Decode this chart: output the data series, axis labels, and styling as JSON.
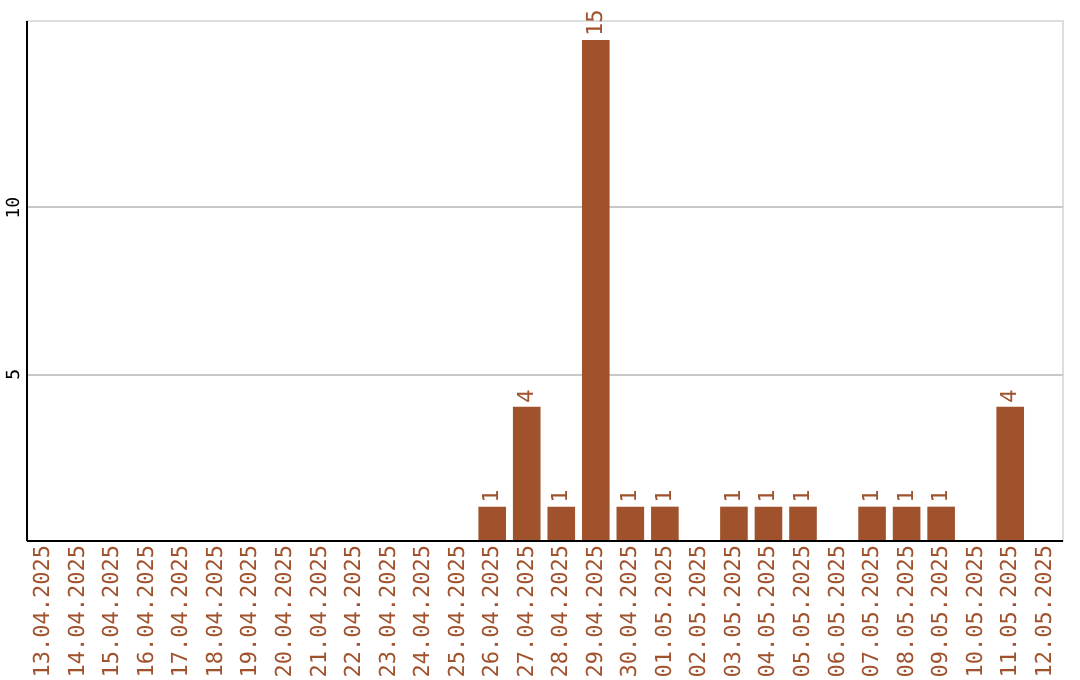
{
  "chart_data": {
    "type": "bar",
    "categories": [
      "13.04.2025",
      "14.04.2025",
      "15.04.2025",
      "16.04.2025",
      "17.04.2025",
      "18.04.2025",
      "19.04.2025",
      "20.04.2025",
      "21.04.2025",
      "22.04.2025",
      "23.04.2025",
      "24.04.2025",
      "25.04.2025",
      "26.04.2025",
      "27.04.2025",
      "28.04.2025",
      "29.04.2025",
      "30.04.2025",
      "01.05.2025",
      "02.05.2025",
      "03.05.2025",
      "04.05.2025",
      "05.05.2025",
      "06.05.2025",
      "07.05.2025",
      "08.05.2025",
      "09.05.2025",
      "10.05.2025",
      "11.05.2025",
      "12.05.2025"
    ],
    "values": [
      0,
      0,
      0,
      0,
      0,
      0,
      0,
      0,
      0,
      0,
      0,
      0,
      0,
      1,
      4,
      1,
      15,
      1,
      1,
      0,
      1,
      1,
      1,
      0,
      1,
      1,
      1,
      0,
      4,
      0
    ],
    "value_labels": [
      null,
      null,
      null,
      null,
      null,
      null,
      null,
      null,
      null,
      null,
      null,
      null,
      null,
      "1",
      "4",
      "1",
      "15",
      "1",
      "1",
      null,
      "1",
      "1",
      "1",
      null,
      "1",
      "1",
      "1",
      null,
      "4",
      null
    ],
    "color": "#a0522d",
    "ylim": [
      0,
      15.6
    ],
    "yticks": [
      5,
      10
    ],
    "grid": "y"
  }
}
